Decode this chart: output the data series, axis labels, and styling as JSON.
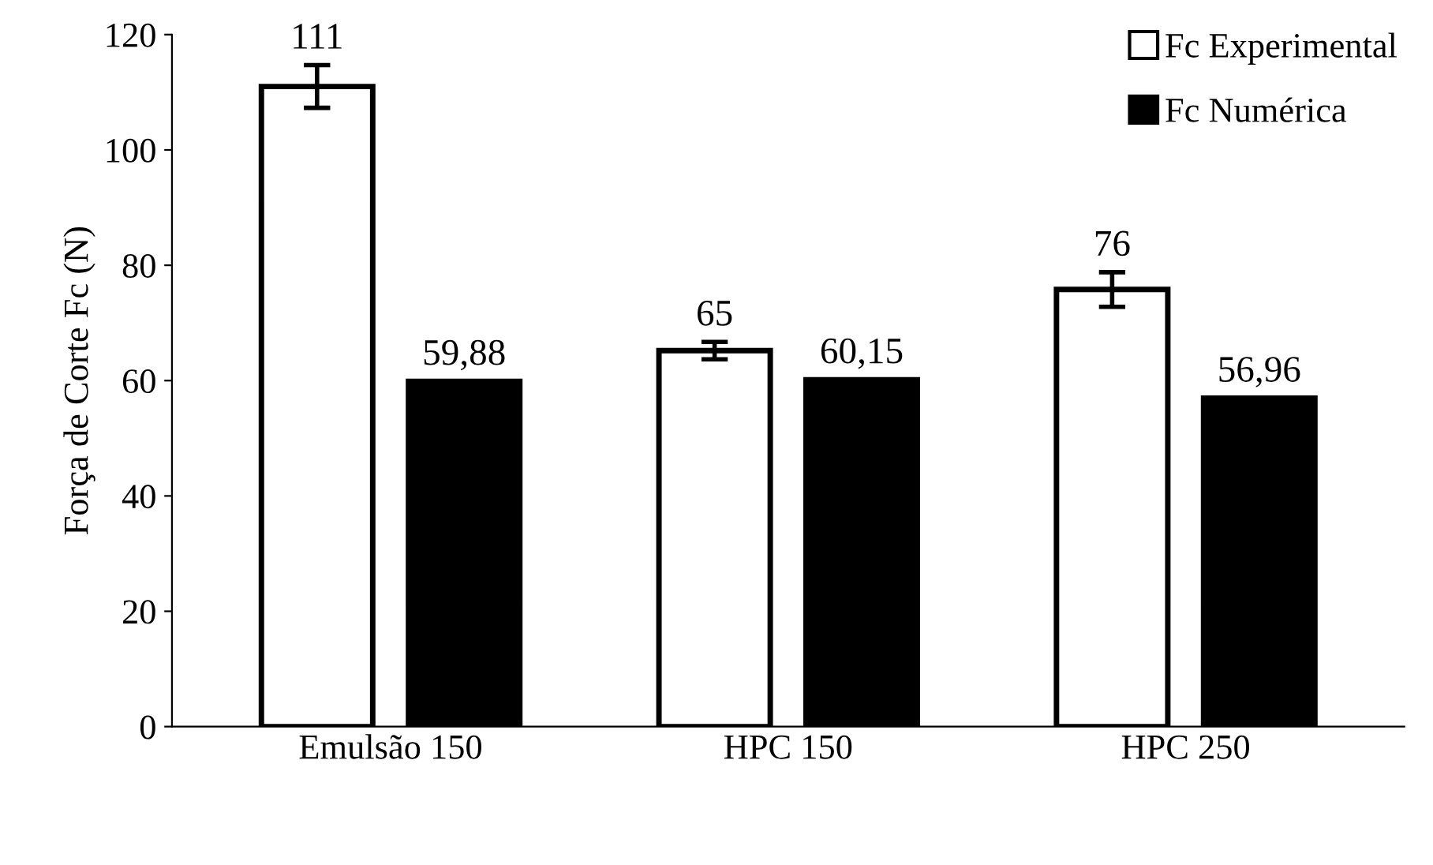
{
  "chart_data": {
    "type": "bar",
    "ylabel": "Força de Corte Fc (N)",
    "categories": [
      "Emulsão 150",
      "HPC 150",
      "HPC 250"
    ],
    "series": [
      {
        "name": "Fc Experimental",
        "color": "#ffffff",
        "values": [
          111,
          65.2,
          75.8
        ],
        "errors": [
          3.7,
          1.5,
          3.0
        ],
        "value_labels": [
          "111",
          "65",
          "76"
        ]
      },
      {
        "name": "Fc Numérica",
        "color": "#000000",
        "values": [
          59.88,
          60.15,
          56.96
        ],
        "value_labels": [
          "59,88",
          "60,15",
          "56,96"
        ]
      }
    ],
    "ylim": [
      0,
      120
    ],
    "yticks": [
      0,
      20,
      40,
      60,
      80,
      100,
      120
    ],
    "grid": false,
    "legend": "top right"
  }
}
